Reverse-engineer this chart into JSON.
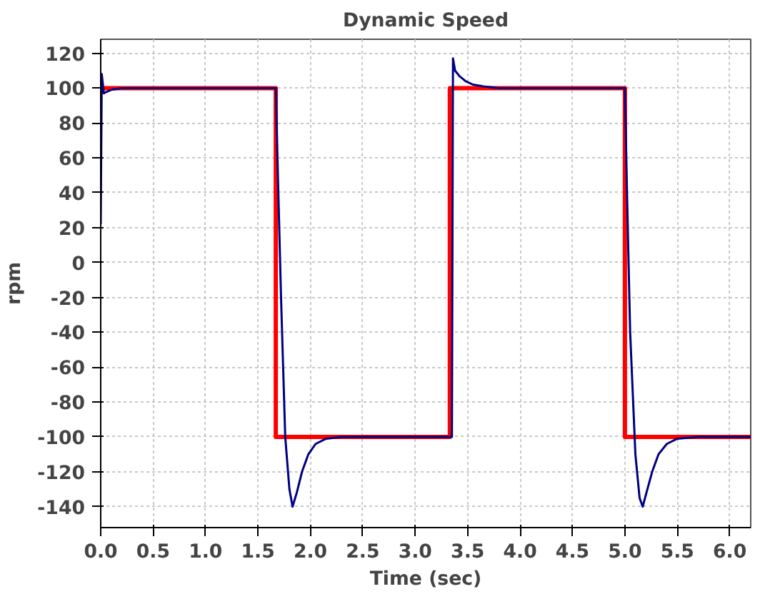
{
  "chart_data": {
    "type": "line",
    "title": "Dynamic Speed",
    "xlabel": "Time (sec)",
    "ylabel": "rpm",
    "xlim": [
      0,
      6.2
    ],
    "ylim": [
      -152,
      128
    ],
    "xticks": [
      {
        "value": 0,
        "label": "0.0"
      },
      {
        "value": 0.5,
        "label": "0.5"
      },
      {
        "value": 1,
        "label": "1.0"
      },
      {
        "value": 1.5,
        "label": "1.5"
      },
      {
        "value": 2,
        "label": "2.0"
      },
      {
        "value": 2.5,
        "label": "2.5"
      },
      {
        "value": 3,
        "label": "3.0"
      },
      {
        "value": 3.5,
        "label": "3.5"
      },
      {
        "value": 4,
        "label": "4.0"
      },
      {
        "value": 4.5,
        "label": "4.5"
      },
      {
        "value": 5,
        "label": "5.0"
      },
      {
        "value": 5.5,
        "label": "5.5"
      },
      {
        "value": 6,
        "label": "6.0"
      }
    ],
    "yticks": [
      -140,
      -120,
      -100,
      -80,
      -60,
      -40,
      -20,
      0,
      20,
      40,
      60,
      80,
      100,
      120
    ],
    "grid": true,
    "marker": "none",
    "line_style": "solid",
    "series": [
      {
        "color": "#ff0000",
        "x": [
          0,
          1.67,
          1.67,
          3.33,
          3.33,
          5.0,
          5.0,
          6.2
        ],
        "values": [
          100,
          100,
          -100,
          -100,
          100,
          100,
          -100,
          -100
        ]
      },
      {
        "color": "#000080",
        "x": [
          0,
          0.01,
          0.03,
          0.06,
          0.1,
          0.2,
          0.4,
          0.8,
          1.67,
          1.69,
          1.72,
          1.76,
          1.8,
          1.83,
          1.87,
          1.92,
          1.98,
          2.05,
          2.15,
          2.3,
          2.6,
          3.35,
          3.36,
          3.38,
          3.42,
          3.48,
          3.55,
          3.65,
          3.8,
          4.2,
          5.0,
          5.02,
          5.05,
          5.1,
          5.14,
          5.17,
          5.21,
          5.26,
          5.32,
          5.4,
          5.5,
          5.7,
          6.2
        ],
        "values": [
          22,
          108,
          97,
          98,
          99,
          100,
          100,
          100,
          100,
          50,
          -20,
          -100,
          -130,
          -140,
          -132,
          -120,
          -110,
          -104,
          -101,
          -100,
          -100,
          -100,
          117,
          110,
          107,
          104,
          102,
          101,
          100,
          100,
          100,
          40,
          -40,
          -110,
          -135,
          -140,
          -131,
          -120,
          -110,
          -104,
          -101,
          -100,
          -100
        ]
      }
    ]
  }
}
